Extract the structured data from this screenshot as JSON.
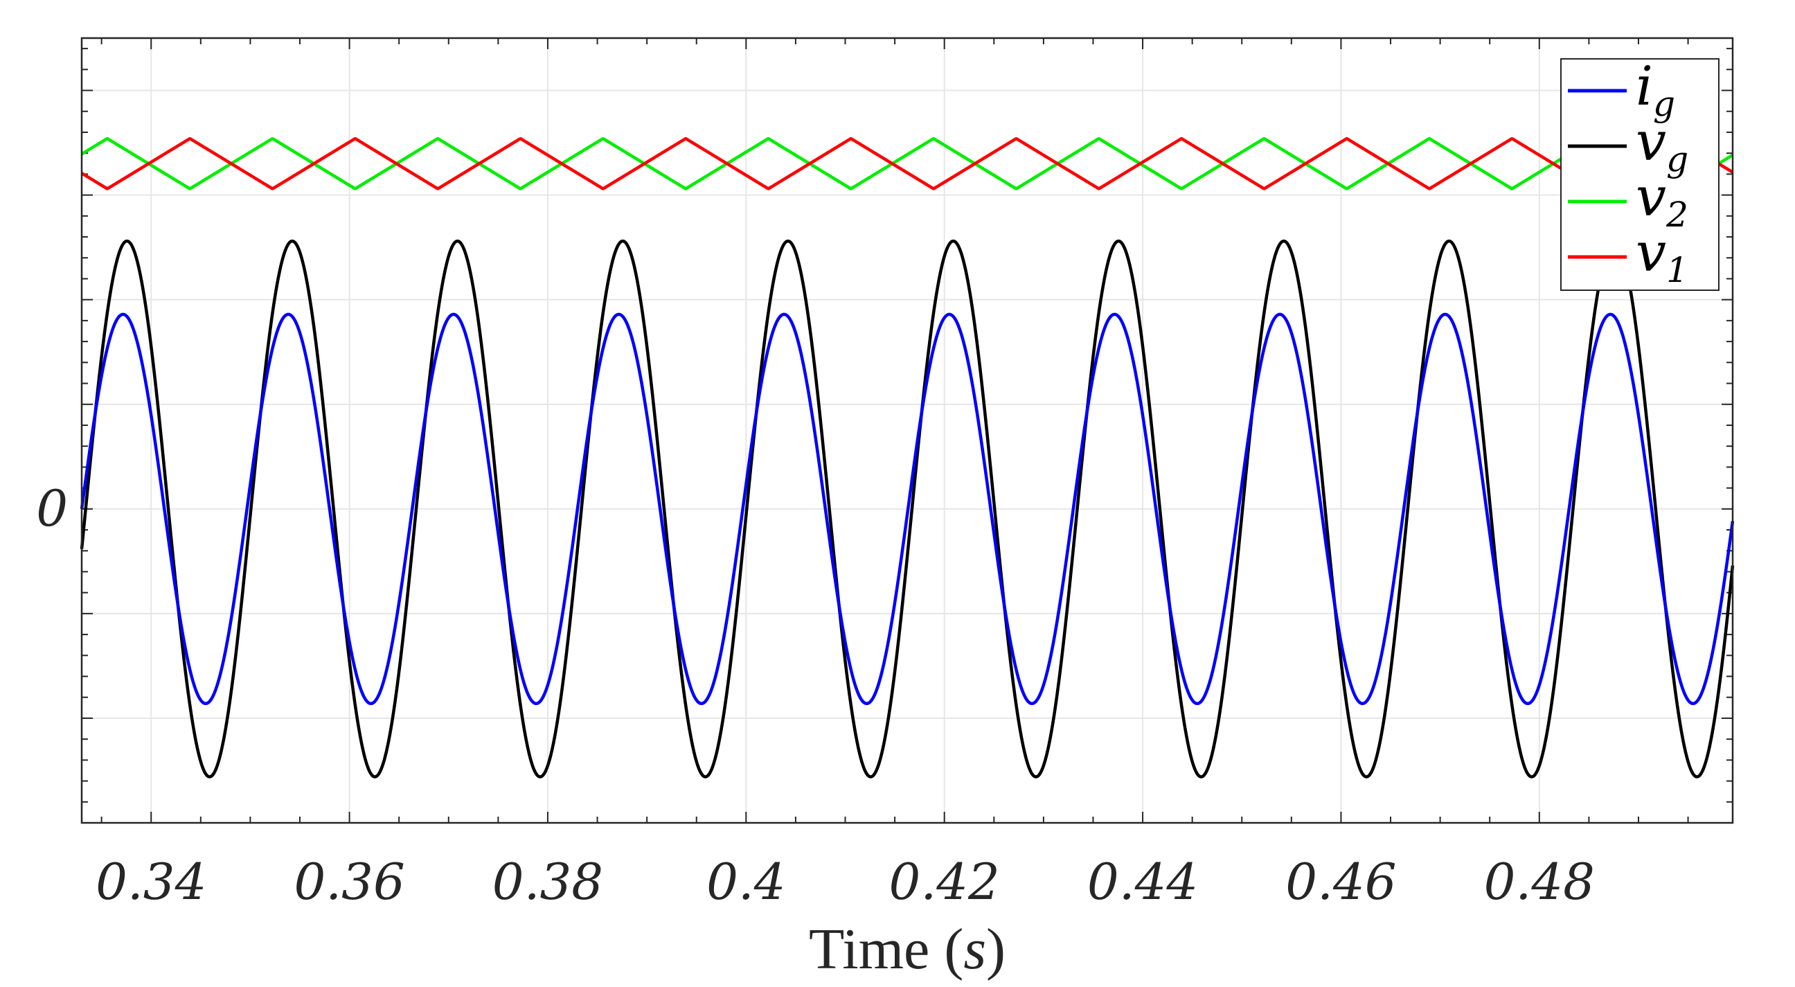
{
  "chart_data": {
    "type": "line",
    "title": "",
    "xlabel": "Time",
    "xlabel_unit": "s",
    "ylabel": "",
    "xlim": [
      0.333,
      0.4995
    ],
    "ylim": [
      -1.5,
      2.25
    ],
    "x_ticks": [
      0.34,
      0.36,
      0.38,
      0.4,
      0.42,
      0.44,
      0.46,
      0.48
    ],
    "x_tick_labels": [
      "0.34",
      "0.36",
      "0.38",
      "0.4",
      "0.42",
      "0.44",
      "0.46",
      "0.48"
    ],
    "y_ticks": [
      0
    ],
    "y_tick_labels": [
      "0"
    ],
    "grid": true,
    "legend_position": "top-right",
    "series": [
      {
        "name": "i_g",
        "legend_main": "i",
        "legend_sub": "g",
        "color": "#0000ff",
        "kind": "sine",
        "amplitude": 0.93,
        "offset": 0.0,
        "frequency_hz": 60,
        "phase_rad": 0.0
      },
      {
        "name": "v_g",
        "legend_main": "v",
        "legend_sub": "g",
        "color": "#000000",
        "kind": "sine",
        "amplitude": 1.28,
        "offset": 0.0,
        "frequency_hz": 60,
        "phase_rad": -0.15
      },
      {
        "name": "v_2",
        "legend_main": "v",
        "legend_sub": "2",
        "color": "#00ee00",
        "kind": "triangle",
        "amplitude": 0.12,
        "offset": 1.65,
        "frequency_hz": 60,
        "phase_rad": 0.6
      },
      {
        "name": "v_1",
        "legend_main": "v",
        "legend_sub": "1",
        "color": "#ff0000",
        "kind": "triangle",
        "amplitude": 0.12,
        "offset": 1.65,
        "frequency_hz": 60,
        "phase_rad": 3.74
      }
    ]
  }
}
